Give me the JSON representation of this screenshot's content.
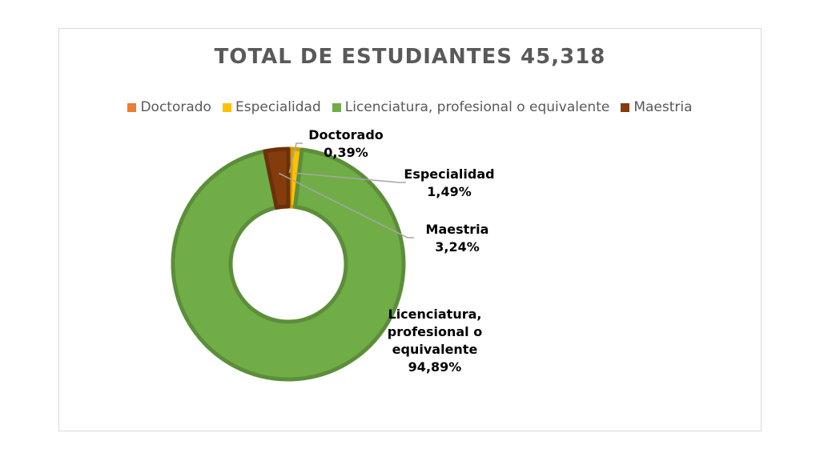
{
  "chart_data": {
    "type": "pie",
    "subtype": "donut",
    "title": "TOTAL DE ESTUDIANTES 45,318",
    "legend_position": "top",
    "categories": [
      "Doctorado",
      "Especialidad",
      "Licenciatura, profesional o equivalente",
      "Maestria"
    ],
    "values": [
      0.39,
      1.49,
      94.89,
      3.24
    ],
    "value_labels": [
      "0,39%",
      "1,49%",
      "94,89%",
      "3,24%"
    ],
    "label_lines": [
      [
        "Doctorado",
        "0,39%"
      ],
      [
        "Especialidad",
        "1,49%"
      ],
      [
        "Licenciatura,",
        "profesional o",
        "equivalente",
        "94,89%"
      ],
      [
        "Maestria",
        "3,24%"
      ]
    ],
    "colors": [
      "#ED7D31",
      "#FFC000",
      "#70AD47",
      "#843C0C"
    ]
  }
}
